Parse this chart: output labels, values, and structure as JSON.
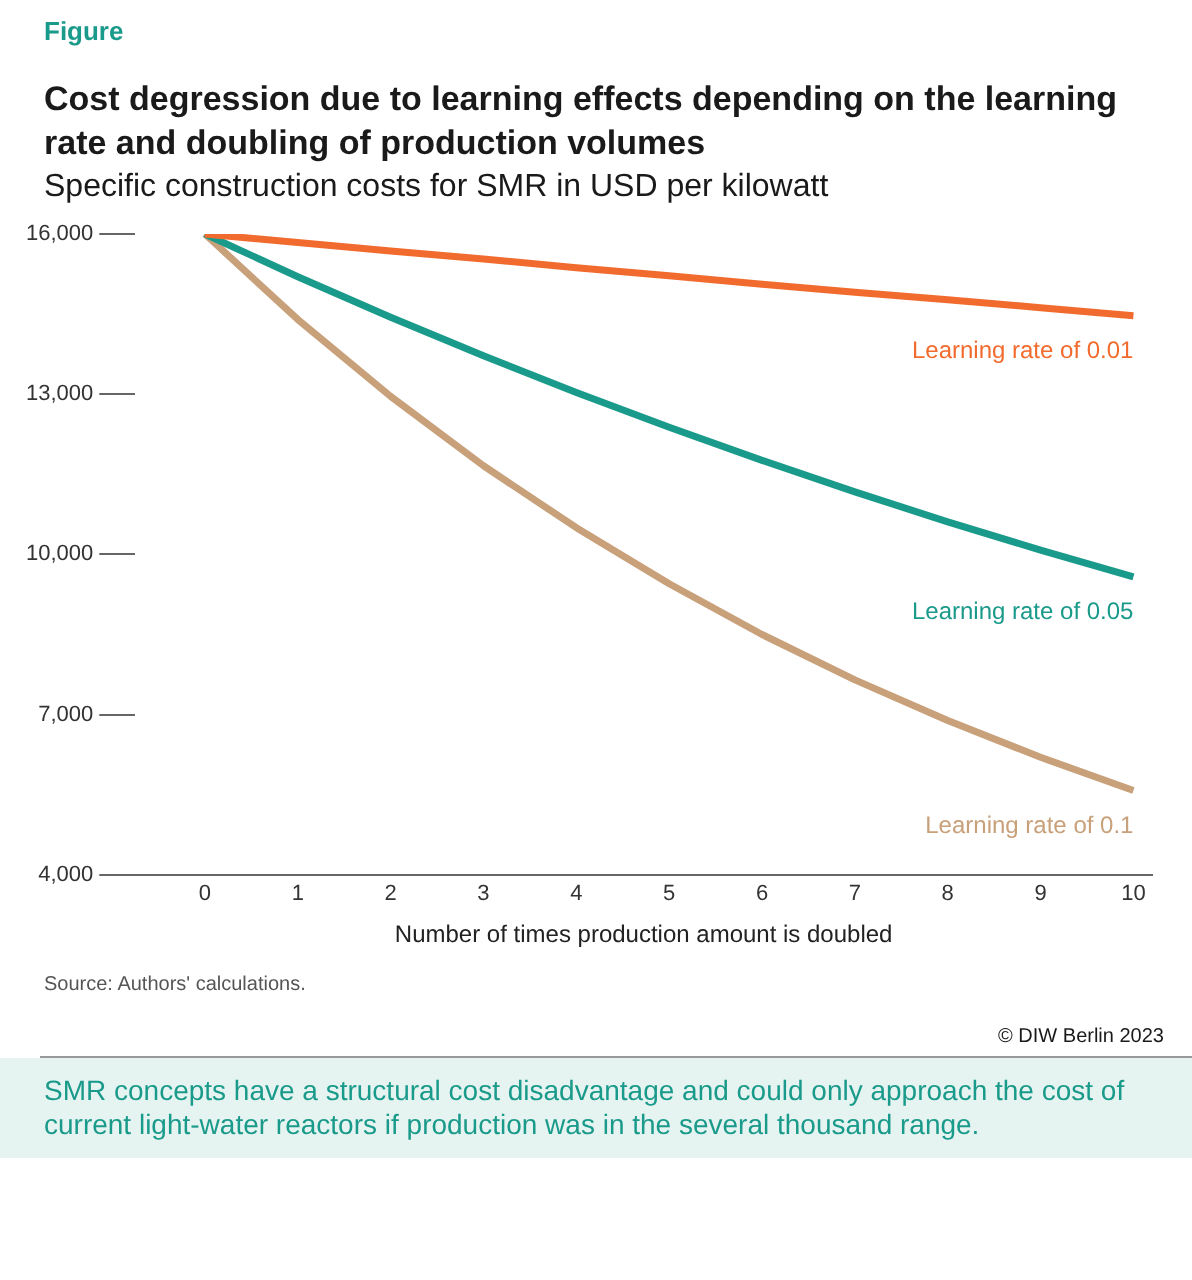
{
  "chart_data": {
    "type": "line",
    "title": "Cost degression due to learning effects depending on the learning rate and doubling of production volumes",
    "subtitle": "Specific construction costs for SMR in USD per kilowatt",
    "xlabel": "Number of times production amount is doubled",
    "x": [
      0,
      1,
      2,
      3,
      4,
      5,
      6,
      7,
      8,
      9,
      10
    ],
    "xlim": [
      -0.75,
      10.2
    ],
    "xticks": [
      0,
      1,
      2,
      3,
      4,
      5,
      6,
      7,
      8,
      9,
      10
    ],
    "ylim": [
      4000,
      16000
    ],
    "yticks": [
      {
        "value": 4000,
        "label": "4,000"
      },
      {
        "value": 7000,
        "label": "7,000"
      },
      {
        "value": 10000,
        "label": "10,000"
      },
      {
        "value": 13000,
        "label": "13,000"
      },
      {
        "value": 16000,
        "label": "16,000"
      }
    ],
    "series": [
      {
        "name": "Learning rate of 0.01",
        "color": "#f26b2e",
        "values": [
          16000,
          15840,
          15680,
          15530,
          15370,
          15220,
          15060,
          14910,
          14770,
          14620,
          14470
        ]
      },
      {
        "name": "Learning rate of 0.05",
        "color": "#1a9a8a",
        "values": [
          16000,
          15200,
          14440,
          13720,
          13030,
          12380,
          11760,
          11170,
          10610,
          10080,
          9580
        ]
      },
      {
        "name": "Learning rate of 0.1",
        "color": "#c8a07a",
        "values": [
          16000,
          14400,
          12960,
          11660,
          10500,
          9450,
          8500,
          7650,
          6890,
          6200,
          5580
        ]
      }
    ],
    "grid": false,
    "legend": false,
    "marker": "none",
    "line_style": "solid",
    "annotations": [
      "Figure",
      "Source: Authors' calculations.",
      "© DIW Berlin 2023",
      "SMR concepts have a structural cost disadvantage and could only approach the cost of current light-water reactors if production was in the several thousand range."
    ]
  }
}
